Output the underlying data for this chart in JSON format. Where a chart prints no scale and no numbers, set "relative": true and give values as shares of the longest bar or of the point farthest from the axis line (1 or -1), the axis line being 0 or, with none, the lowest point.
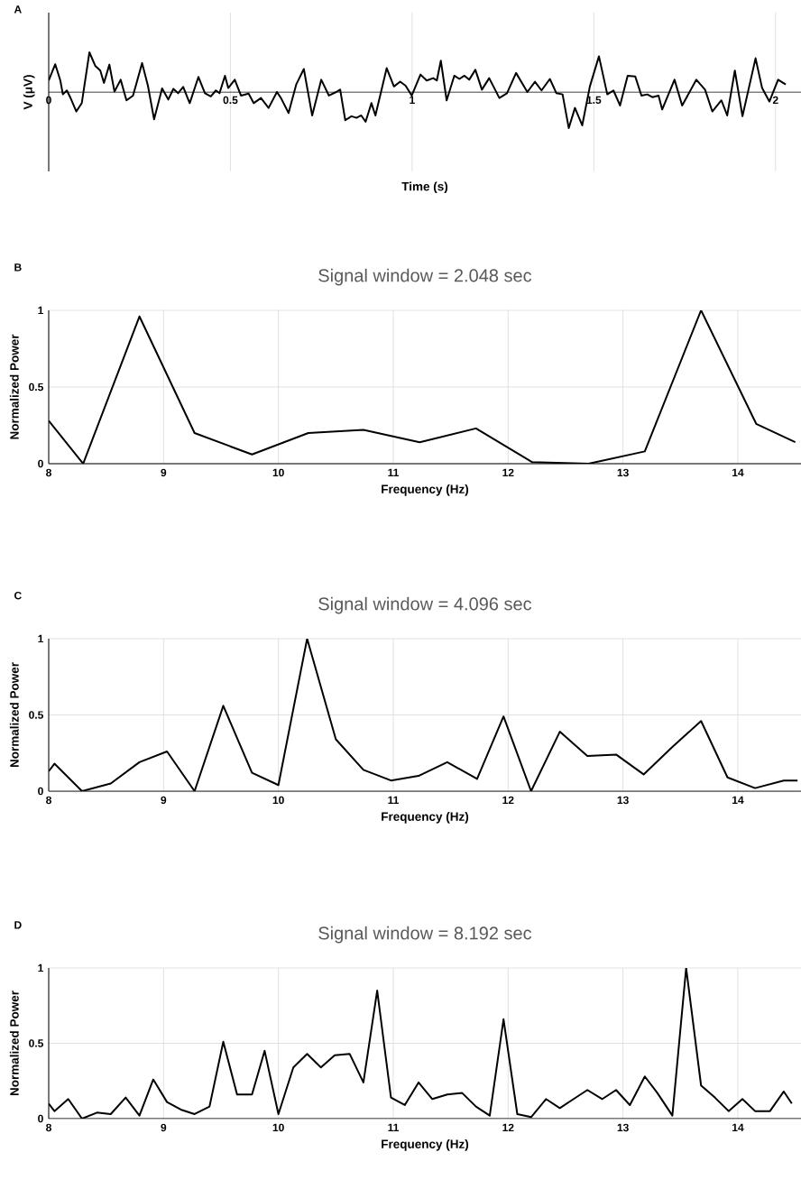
{
  "chart_data": [
    {
      "type": "line",
      "relative": true,
      "xlabel": "Time (s)",
      "ylabel": "V (μV)",
      "annotations": [
        "A"
      ],
      "xlim": [
        0,
        2.07
      ],
      "xticks": [
        0,
        0.5,
        1,
        1.5,
        2
      ],
      "grid": true,
      "marker": "none",
      "x": [
        0,
        0.018,
        0.032,
        0.039,
        0.05,
        0.059,
        0.076,
        0.091,
        0.112,
        0.128,
        0.142,
        0.152,
        0.167,
        0.181,
        0.198,
        0.214,
        0.232,
        0.257,
        0.273,
        0.29,
        0.312,
        0.329,
        0.343,
        0.356,
        0.37,
        0.388,
        0.412,
        0.43,
        0.446,
        0.46,
        0.47,
        0.485,
        0.494,
        0.512,
        0.529,
        0.55,
        0.564,
        0.584,
        0.605,
        0.628,
        0.639,
        0.66,
        0.681,
        0.702,
        0.725,
        0.75,
        0.771,
        0.791,
        0.802,
        0.816,
        0.833,
        0.847,
        0.86,
        0.872,
        0.888,
        0.899,
        0.93,
        0.95,
        0.967,
        0.982,
        0.999,
        1.023,
        1.04,
        1.058,
        1.068,
        1.079,
        1.095,
        1.116,
        1.13,
        1.144,
        1.157,
        1.174,
        1.192,
        1.212,
        1.24,
        1.261,
        1.286,
        1.317,
        1.338,
        1.356,
        1.379,
        1.397,
        1.414,
        1.431,
        1.448,
        1.468,
        1.489,
        1.514,
        1.537,
        1.554,
        1.572,
        1.593,
        1.614,
        1.631,
        1.647,
        1.661,
        1.678,
        1.688,
        1.722,
        1.743,
        1.782,
        1.806,
        1.826,
        1.851,
        1.867,
        1.888,
        1.909,
        1.945,
        1.963,
        1.983,
        2.007,
        2.028
      ],
      "series": [
        {
          "color": "#000000",
          "values": [
            0.29,
            0.7,
            0.29,
            -0.06,
            0.04,
            -0.13,
            -0.49,
            -0.28,
            1.0,
            0.66,
            0.54,
            0.23,
            0.69,
            0.01,
            0.31,
            -0.21,
            -0.09,
            0.73,
            0.16,
            -0.69,
            0.09,
            -0.19,
            0.08,
            -0.03,
            0.13,
            -0.28,
            0.38,
            -0.03,
            -0.11,
            0.04,
            -0.03,
            0.41,
            0.1,
            0.31,
            -0.09,
            -0.04,
            -0.28,
            -0.15,
            -0.4,
            0.0,
            -0.15,
            -0.53,
            0.19,
            0.58,
            -0.59,
            0.31,
            -0.09,
            0.0,
            0.06,
            -0.71,
            -0.61,
            -0.65,
            -0.59,
            -0.75,
            -0.28,
            -0.59,
            0.6,
            0.14,
            0.26,
            0.16,
            -0.09,
            0.44,
            0.29,
            0.35,
            0.29,
            0.79,
            -0.21,
            0.41,
            0.33,
            0.41,
            0.31,
            0.56,
            0.06,
            0.35,
            -0.15,
            -0.03,
            0.48,
            0.0,
            0.26,
            0.04,
            0.33,
            -0.03,
            -0.06,
            -0.91,
            -0.4,
            -0.84,
            0.14,
            0.9,
            -0.06,
            0.04,
            -0.34,
            0.41,
            0.39,
            -0.09,
            -0.06,
            -0.13,
            -0.09,
            -0.44,
            0.31,
            -0.34,
            0.31,
            0.06,
            -0.49,
            -0.21,
            -0.59,
            0.54,
            -0.61,
            0.85,
            0.1,
            -0.24,
            0.31,
            0.19
          ]
        }
      ]
    },
    {
      "type": "line",
      "title": "Signal window = 2.048 sec",
      "xlabel": "Frequency (Hz)",
      "ylabel": "Normalized Power",
      "annotations": [
        "B"
      ],
      "xlim": [
        8,
        14.55
      ],
      "xticks": [
        8,
        9,
        10,
        11,
        12,
        13,
        14
      ],
      "ylim": [
        0,
        1
      ],
      "yticks": [
        0,
        0.5,
        1
      ],
      "grid": true,
      "marker": "none",
      "x": [
        8.0,
        8.3,
        8.79,
        9.27,
        9.77,
        10.26,
        10.74,
        11.23,
        11.72,
        12.21,
        12.7,
        13.19,
        13.68,
        14.16,
        14.5
      ],
      "series": [
        {
          "color": "#000000",
          "values": [
            0.28,
            0.0,
            0.96,
            0.2,
            0.06,
            0.2,
            0.22,
            0.14,
            0.23,
            0.01,
            0.0,
            0.08,
            1.0,
            0.26,
            0.14
          ]
        }
      ]
    },
    {
      "type": "line",
      "title": "Signal window = 4.096 sec",
      "xlabel": "Frequency (Hz)",
      "ylabel": "Normalized Power",
      "annotations": [
        "C"
      ],
      "xlim": [
        8,
        14.55
      ],
      "xticks": [
        8,
        9,
        10,
        11,
        12,
        13,
        14
      ],
      "ylim": [
        0,
        1
      ],
      "yticks": [
        0,
        0.5,
        1
      ],
      "grid": true,
      "marker": "none",
      "x": [
        8.0,
        8.05,
        8.29,
        8.54,
        8.79,
        9.03,
        9.27,
        9.52,
        9.77,
        10.0,
        10.25,
        10.5,
        10.74,
        10.98,
        11.22,
        11.47,
        11.73,
        11.96,
        12.2,
        12.45,
        12.69,
        12.94,
        13.18,
        13.43,
        13.68,
        13.91,
        14.15,
        14.4,
        14.52
      ],
      "series": [
        {
          "color": "#000000",
          "values": [
            0.13,
            0.18,
            0.0,
            0.05,
            0.19,
            0.26,
            0.0,
            0.56,
            0.12,
            0.04,
            1.0,
            0.34,
            0.14,
            0.07,
            0.1,
            0.19,
            0.08,
            0.49,
            0.0,
            0.39,
            0.23,
            0.24,
            0.11,
            0.29,
            0.46,
            0.09,
            0.02,
            0.07,
            0.07
          ]
        }
      ]
    },
    {
      "type": "line",
      "title": "Signal window = 8.192 sec",
      "xlabel": "Frequency (Hz)",
      "ylabel": "Normalized Power",
      "annotations": [
        "D"
      ],
      "xlim": [
        8,
        14.55
      ],
      "xticks": [
        8,
        9,
        10,
        11,
        12,
        13,
        14
      ],
      "ylim": [
        0,
        1
      ],
      "yticks": [
        0,
        0.5,
        1
      ],
      "grid": true,
      "marker": "none",
      "x": [
        8.0,
        8.05,
        8.17,
        8.29,
        8.42,
        8.54,
        8.67,
        8.79,
        8.91,
        9.03,
        9.15,
        9.27,
        9.4,
        9.52,
        9.64,
        9.77,
        9.88,
        10.0,
        10.13,
        10.25,
        10.37,
        10.49,
        10.62,
        10.74,
        10.86,
        10.98,
        11.1,
        11.22,
        11.34,
        11.47,
        11.6,
        11.72,
        11.84,
        11.96,
        12.08,
        12.2,
        12.33,
        12.45,
        12.57,
        12.69,
        12.82,
        12.94,
        13.06,
        13.19,
        13.3,
        13.43,
        13.55,
        13.68,
        13.8,
        13.92,
        14.04,
        14.15,
        14.28,
        14.4,
        14.47
      ],
      "series": [
        {
          "color": "#000000",
          "values": [
            0.1,
            0.05,
            0.13,
            0.0,
            0.04,
            0.03,
            0.14,
            0.02,
            0.26,
            0.11,
            0.06,
            0.03,
            0.08,
            0.51,
            0.16,
            0.16,
            0.45,
            0.03,
            0.34,
            0.43,
            0.34,
            0.42,
            0.43,
            0.24,
            0.85,
            0.14,
            0.09,
            0.24,
            0.13,
            0.16,
            0.17,
            0.08,
            0.02,
            0.66,
            0.03,
            0.01,
            0.13,
            0.07,
            0.13,
            0.19,
            0.13,
            0.19,
            0.09,
            0.28,
            0.17,
            0.02,
            1.0,
            0.22,
            0.14,
            0.05,
            0.13,
            0.05,
            0.05,
            0.18,
            0.1
          ]
        }
      ]
    }
  ]
}
